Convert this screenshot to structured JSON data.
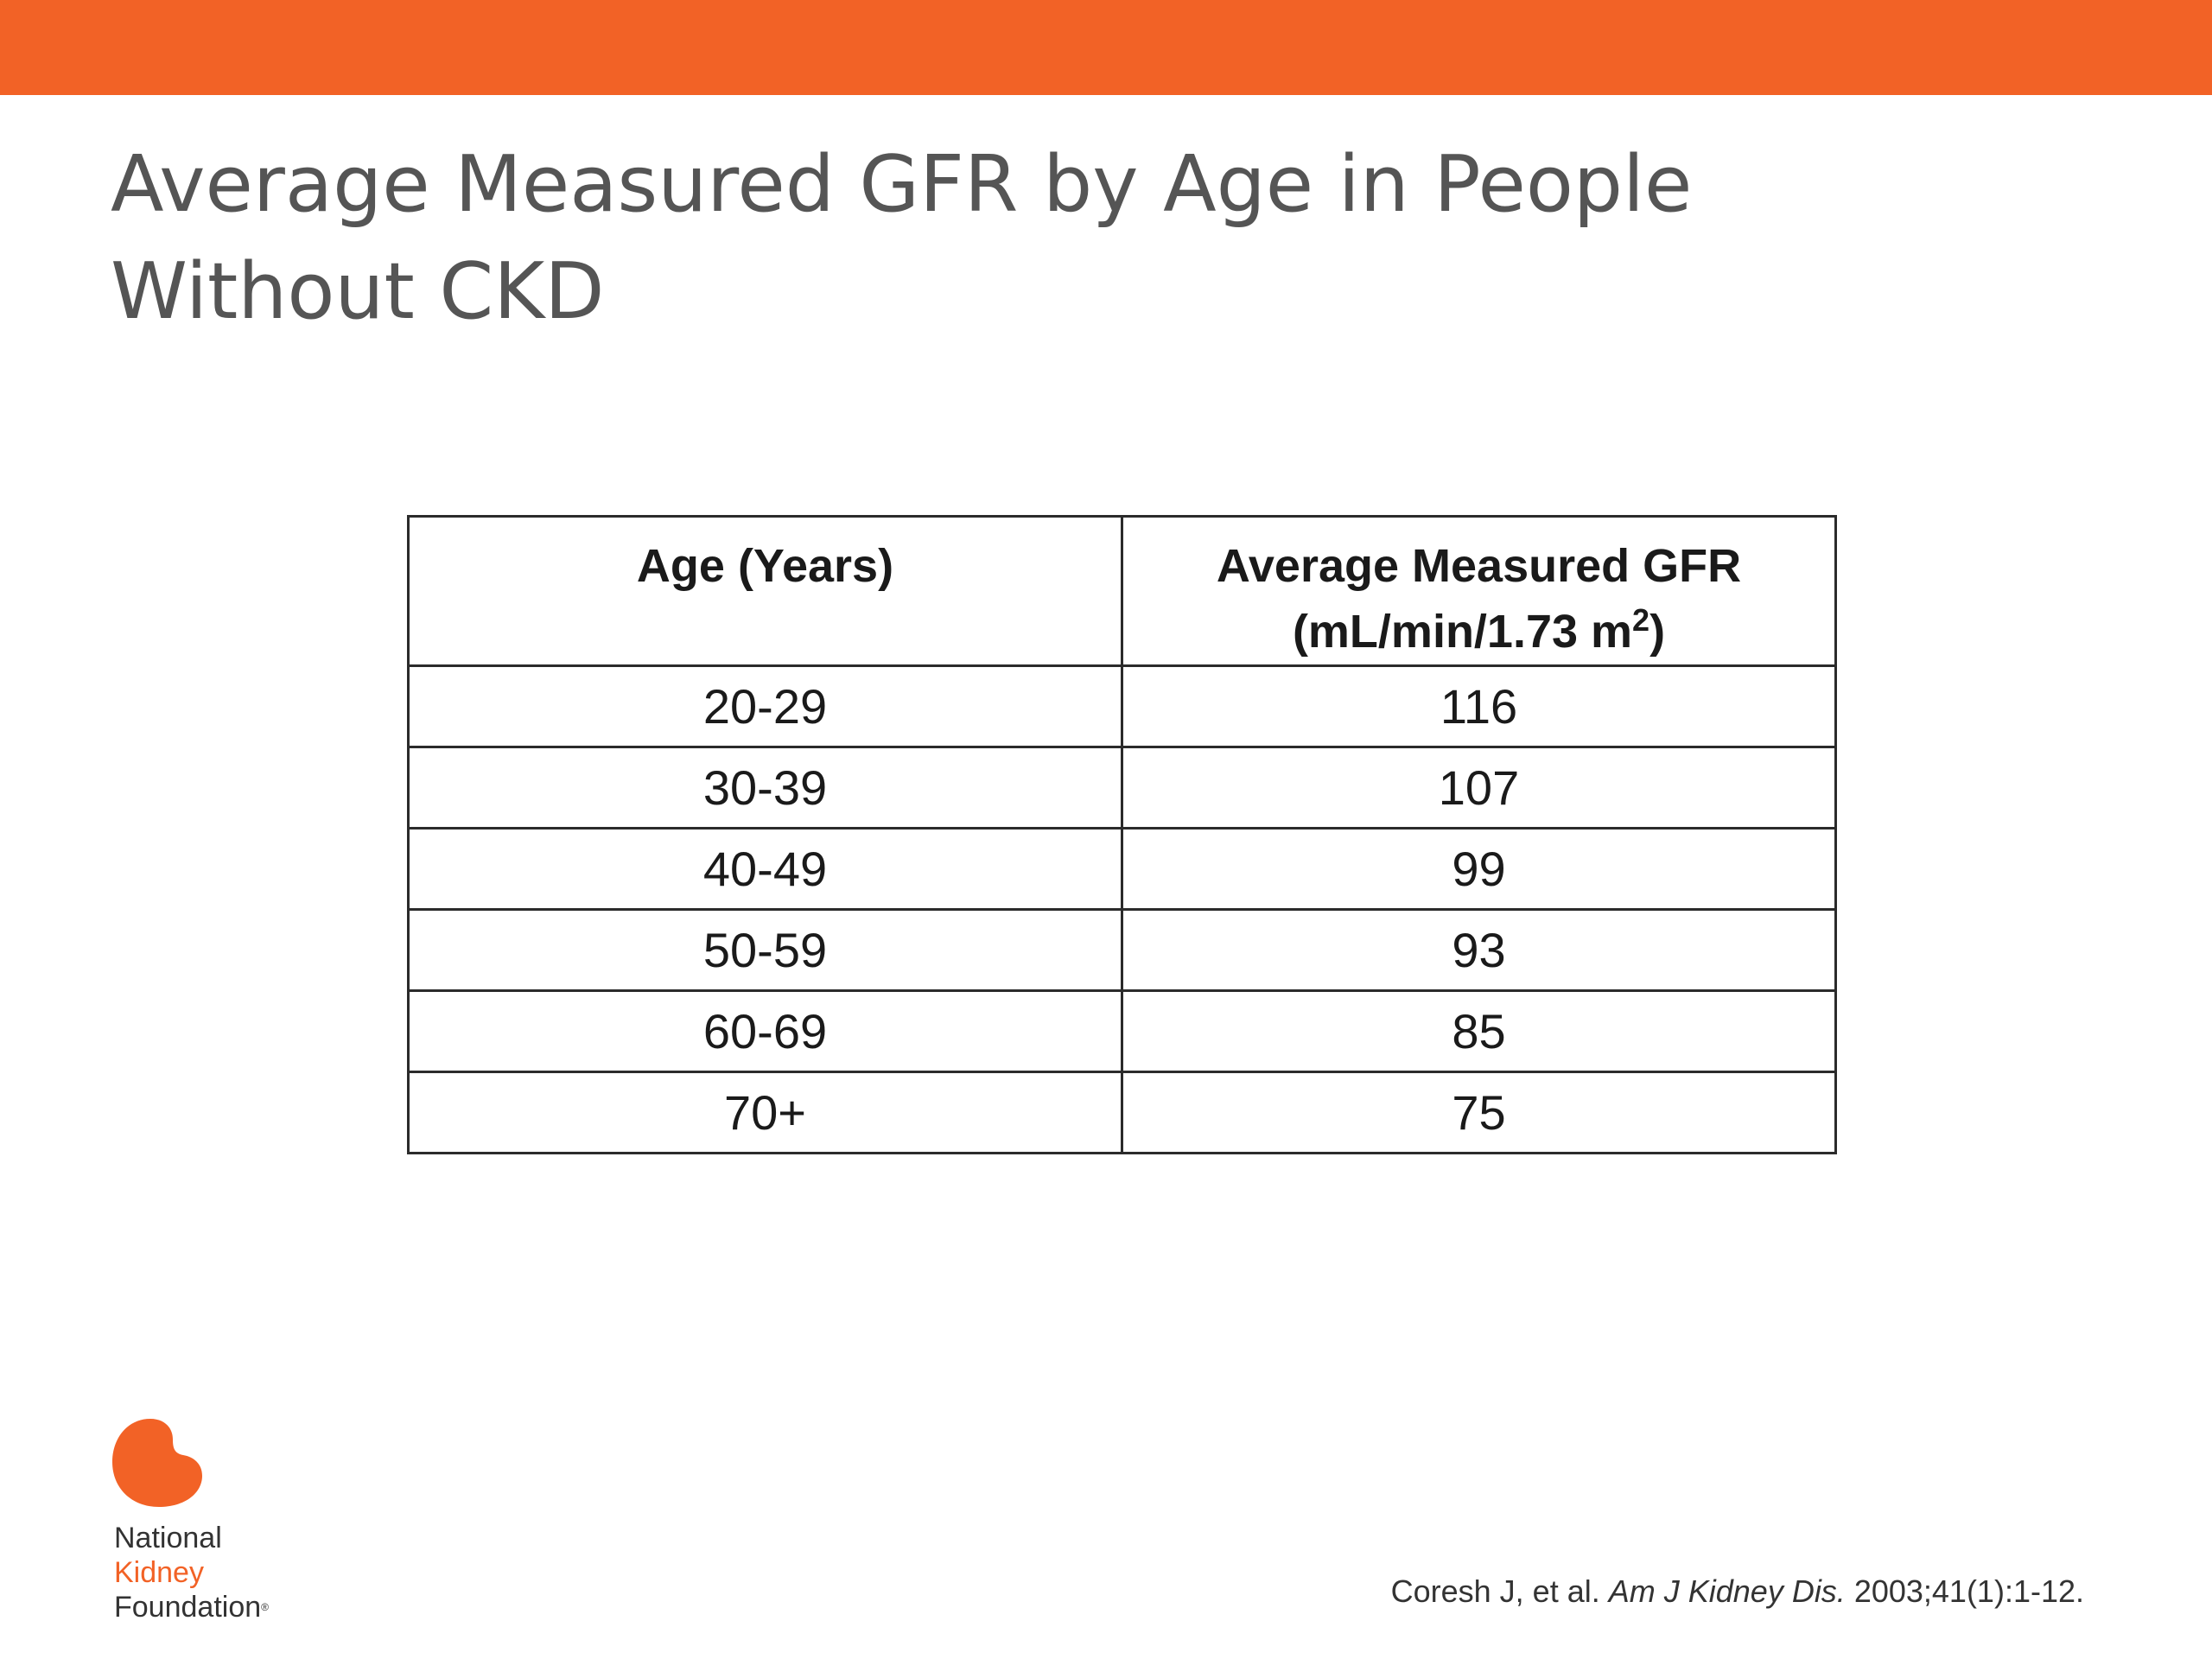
{
  "slide": {
    "title_line1": "Average Measured GFR by Age in People",
    "title_line2": "Without CKD"
  },
  "table": {
    "headers": {
      "age": "Age (Years)",
      "gfr_line1": "Average Measured GFR",
      "gfr_line2_prefix": "(mL/min/1.73 m",
      "gfr_line2_sup": "2",
      "gfr_line2_suffix": ")"
    },
    "rows": [
      {
        "age": "20-29",
        "gfr": "116"
      },
      {
        "age": "30-39",
        "gfr": "107"
      },
      {
        "age": "40-49",
        "gfr": "99"
      },
      {
        "age": "50-59",
        "gfr": "93"
      },
      {
        "age": "60-69",
        "gfr": "85"
      },
      {
        "age": "70+",
        "gfr": "75"
      }
    ]
  },
  "logo": {
    "line1": "National",
    "line2": "Kidney",
    "line3": "Foundation",
    "mark": "®",
    "icon": "kidney-icon",
    "color": "#f26226"
  },
  "citation": {
    "authors": "Coresh J, et al. ",
    "journal": "Am J Kidney Dis.",
    "details": " 2003;41(1):1-12."
  },
  "colors": {
    "accent": "#f26226",
    "title": "#555555"
  }
}
